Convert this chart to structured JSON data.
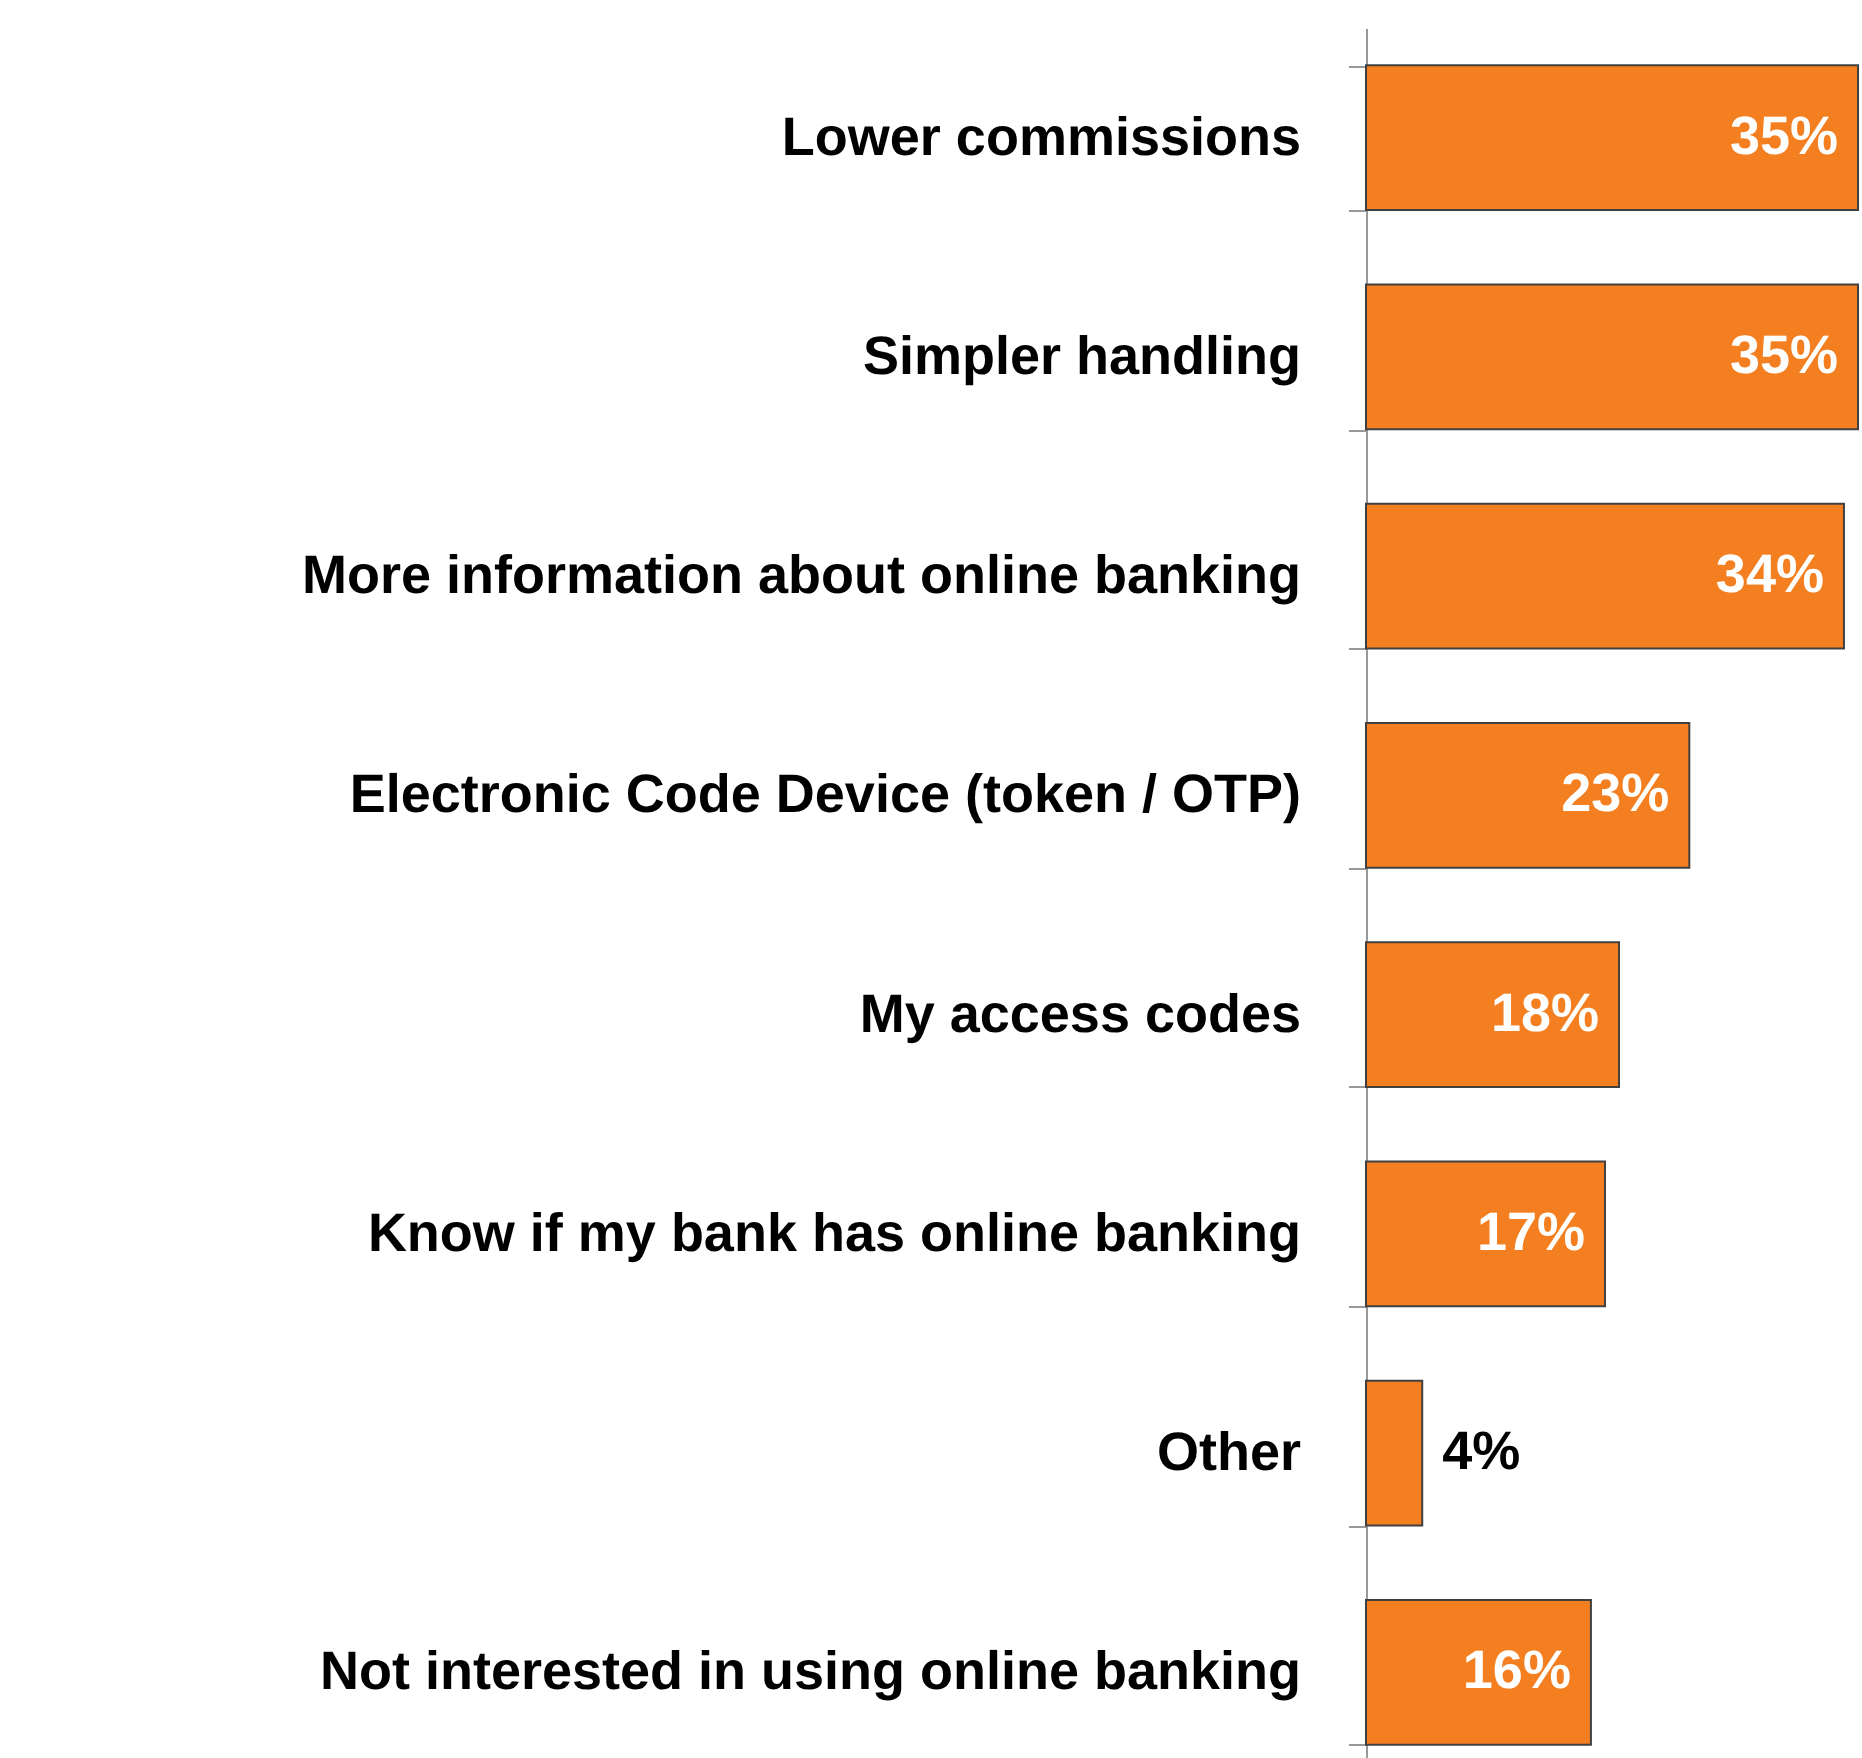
{
  "chart_data": {
    "type": "bar",
    "orientation": "horizontal",
    "data_labels": true,
    "categories": [
      "Lower commissions",
      "Simpler handling",
      "More information about online banking",
      "Electronic Code Device (token / OTP)",
      "My access codes",
      "Know if my bank has online banking",
      "Other",
      "Not interested in using online banking"
    ],
    "values": [
      35,
      35,
      34,
      23,
      18,
      17,
      4,
      16
    ],
    "value_labels": [
      "35%",
      "35%",
      "34%",
      "23%",
      "18%",
      "17%",
      "4%",
      "16%"
    ],
    "color": "#f47f20",
    "grid": false
  }
}
